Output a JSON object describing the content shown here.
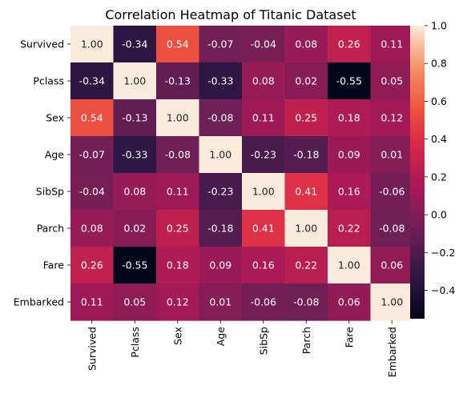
{
  "chart_data": {
    "type": "heatmap",
    "title": "Correlation Heatmap of Titanic Dataset",
    "xlabel": "",
    "ylabel": "",
    "x_categories": [
      "Survived",
      "Pclass",
      "Sex",
      "Age",
      "SibSp",
      "Parch",
      "Fare",
      "Embarked"
    ],
    "y_categories": [
      "Survived",
      "Pclass",
      "Sex",
      "Age",
      "SibSp",
      "Parch",
      "Fare",
      "Embarked"
    ],
    "values": [
      [
        1.0,
        -0.34,
        0.54,
        -0.07,
        -0.04,
        0.08,
        0.26,
        0.11
      ],
      [
        -0.34,
        1.0,
        -0.13,
        -0.33,
        0.08,
        0.02,
        -0.55,
        0.05
      ],
      [
        0.54,
        -0.13,
        1.0,
        -0.08,
        0.11,
        0.25,
        0.18,
        0.12
      ],
      [
        -0.07,
        -0.33,
        -0.08,
        1.0,
        -0.23,
        -0.18,
        0.09,
        0.01
      ],
      [
        -0.04,
        0.08,
        0.11,
        -0.23,
        1.0,
        0.41,
        0.16,
        -0.06
      ],
      [
        0.08,
        0.02,
        0.25,
        -0.18,
        0.41,
        1.0,
        0.22,
        -0.08
      ],
      [
        0.26,
        -0.55,
        0.18,
        0.09,
        0.16,
        0.22,
        1.0,
        0.06
      ],
      [
        0.11,
        0.05,
        0.12,
        0.01,
        -0.06,
        -0.08,
        0.06,
        1.0
      ]
    ],
    "value_format": "2 decimals",
    "colormap": "rocket",
    "vmin": -0.55,
    "vmax": 1.0,
    "colorbar_ticks": [
      -0.4,
      -0.2,
      0.0,
      0.2,
      0.4,
      0.6,
      0.8,
      1.0
    ],
    "colorbar_tick_labels": [
      "−0.4",
      "−0.2",
      "0.0",
      "0.2",
      "0.4",
      "0.6",
      "0.8",
      "1.0"
    ],
    "grid": false,
    "legend": "colorbar-right"
  }
}
